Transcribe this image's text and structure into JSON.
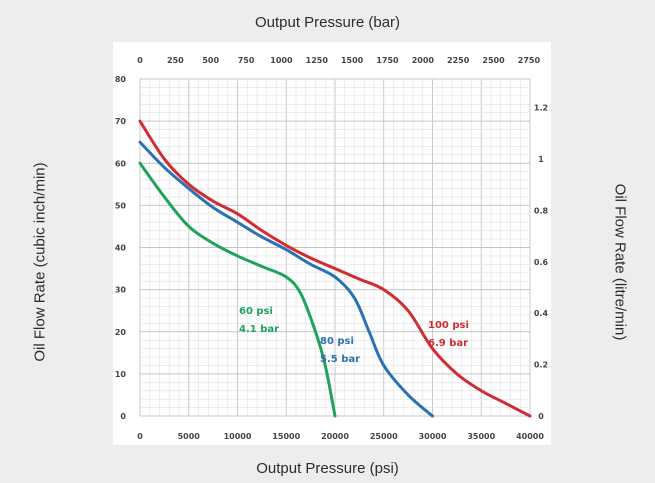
{
  "chart_data": {
    "type": "line",
    "top_axis": {
      "label": "Output Pressure (bar)",
      "ticks": [
        "0",
        "250",
        "500",
        "750",
        "1000",
        "1250",
        "1500",
        "1750",
        "2000",
        "2250",
        "2500",
        "2750"
      ],
      "range": [
        0,
        2757.9
      ]
    },
    "bottom_axis": {
      "label": "Output Pressure (psi)",
      "ticks": [
        "0",
        "5000",
        "10000",
        "15000",
        "20000",
        "25000",
        "30000",
        "35000",
        "40000"
      ],
      "range": [
        0,
        40000
      ]
    },
    "left_axis": {
      "label": "Oil Flow Rate (cubic inch/min)",
      "ticks": [
        "0",
        "10",
        "20",
        "30",
        "40",
        "50",
        "60",
        "70",
        "80"
      ],
      "range": [
        0,
        80
      ]
    },
    "right_axis": {
      "label": "Oil Flow Rate (litre/min)",
      "ticks": [
        "0",
        "0.2",
        "0.4",
        "0.6",
        "0.8",
        "1",
        "1.2"
      ],
      "range": [
        0,
        1.311
      ]
    },
    "grid": true,
    "series": [
      {
        "name": "60 psi 4.1 bar",
        "label_lines": [
          "60 psi",
          "4.1 bar"
        ],
        "color": "#1fa35a",
        "points": [
          [
            0,
            60
          ],
          [
            2500,
            52
          ],
          [
            5000,
            45
          ],
          [
            7500,
            41
          ],
          [
            10000,
            38
          ],
          [
            12500,
            35.5
          ],
          [
            15000,
            33
          ],
          [
            16500,
            29
          ],
          [
            18000,
            20
          ],
          [
            19000,
            12
          ],
          [
            20000,
            0
          ]
        ]
      },
      {
        "name": "80 psi 5.5 bar",
        "label_lines": [
          "80 psi",
          "5.5 bar"
        ],
        "color": "#2a72b3",
        "points": [
          [
            0,
            65
          ],
          [
            2500,
            59
          ],
          [
            5000,
            54
          ],
          [
            7500,
            49.5
          ],
          [
            10000,
            46
          ],
          [
            12500,
            42.5
          ],
          [
            15000,
            39.5
          ],
          [
            17500,
            36
          ],
          [
            20000,
            33
          ],
          [
            22000,
            28
          ],
          [
            23500,
            20
          ],
          [
            25000,
            12
          ],
          [
            27500,
            5
          ],
          [
            30000,
            0
          ]
        ]
      },
      {
        "name": "100 psi 6.9 bar",
        "label_lines": [
          "100 psi",
          "6.9 bar"
        ],
        "color": "#d32b33",
        "points": [
          [
            0,
            70
          ],
          [
            2500,
            61
          ],
          [
            5000,
            55
          ],
          [
            7500,
            51
          ],
          [
            10000,
            48
          ],
          [
            12500,
            44
          ],
          [
            15000,
            40.5
          ],
          [
            17500,
            37.5
          ],
          [
            20000,
            35
          ],
          [
            22500,
            32.5
          ],
          [
            25000,
            30
          ],
          [
            27500,
            25
          ],
          [
            30000,
            16
          ],
          [
            32500,
            10
          ],
          [
            35000,
            6
          ],
          [
            37500,
            3
          ],
          [
            40000,
            0
          ]
        ]
      }
    ]
  }
}
